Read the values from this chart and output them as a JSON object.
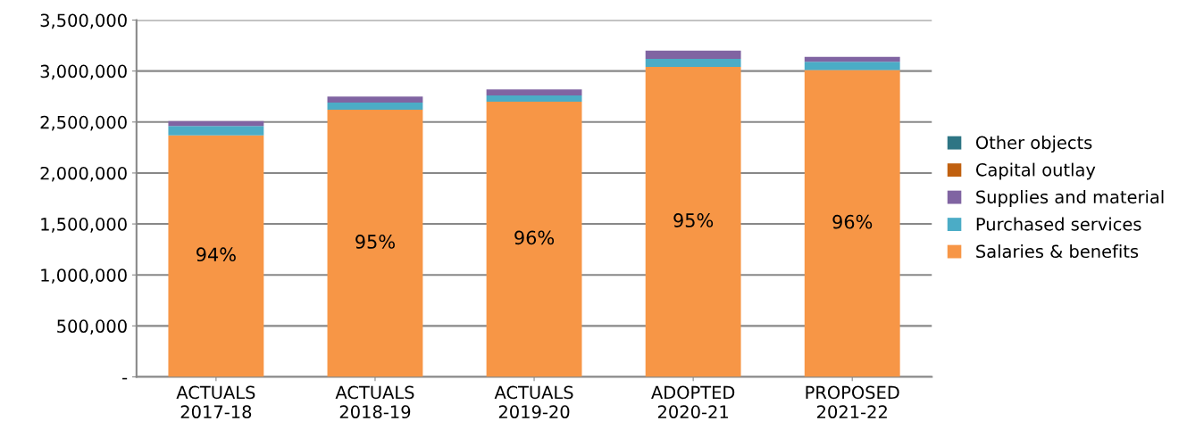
{
  "chart_data": {
    "type": "bar",
    "stacked": true,
    "categories": [
      "ACTUALS\n2017-18",
      "ACTUALS\n2018-19",
      "ACTUALS\n2019-20",
      "ADOPTED\n2020-21",
      "PROPOSED\n2021-22"
    ],
    "series": [
      {
        "name": "Salaries & benefits",
        "color": "#f79646",
        "values": [
          2370000,
          2620000,
          2700000,
          3040000,
          3010000
        ]
      },
      {
        "name": "Purchased services",
        "color": "#4bacc6",
        "values": [
          90000,
          70000,
          60000,
          80000,
          80000
        ]
      },
      {
        "name": "Supplies and material",
        "color": "#8064a2",
        "values": [
          50000,
          60000,
          60000,
          80000,
          50000
        ]
      },
      {
        "name": "Capital outlay",
        "color": "#c0600f",
        "values": [
          0,
          0,
          0,
          0,
          0
        ]
      },
      {
        "name": "Other objects",
        "color": "#2e7584",
        "values": [
          0,
          0,
          0,
          0,
          0
        ]
      }
    ],
    "annotations": [
      "94%",
      "95%",
      "96%",
      "95%",
      "96%"
    ],
    "ylim": [
      0,
      3500000
    ],
    "yticks": [
      {
        "value": 0,
        "label": "-"
      },
      {
        "value": 500000,
        "label": "500,000"
      },
      {
        "value": 1000000,
        "label": "1,000,000"
      },
      {
        "value": 1500000,
        "label": "1,500,000"
      },
      {
        "value": 2000000,
        "label": "2,000,000"
      },
      {
        "value": 2500000,
        "label": "2,500,000"
      },
      {
        "value": 3000000,
        "label": "3,000,000"
      },
      {
        "value": 3500000,
        "label": "3,500,000"
      }
    ],
    "grid": "y",
    "legend": "right"
  }
}
